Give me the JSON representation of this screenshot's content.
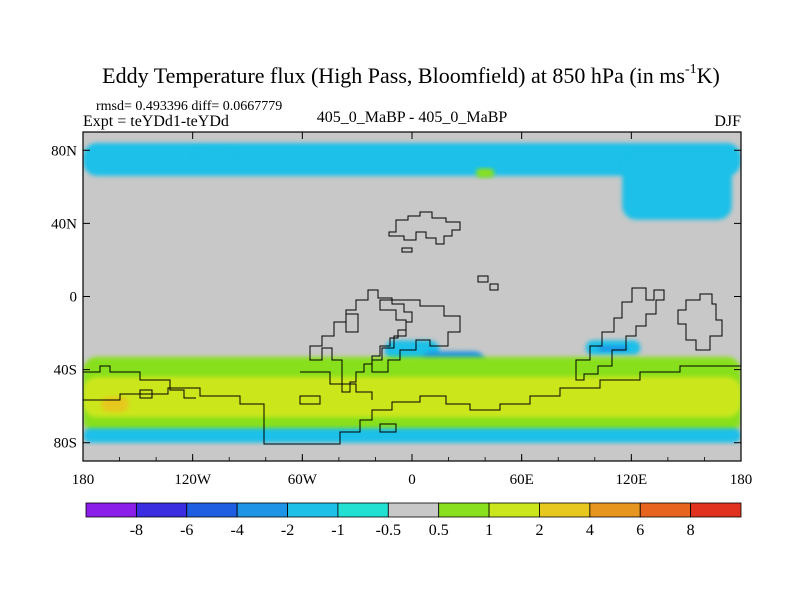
{
  "chart_data": {
    "type": "heatmap",
    "title": "Eddy Temperature flux (High Pass, Bloomfield) at 850 hPa (in ms",
    "title_superscript": "-1",
    "title_suffix": "K)",
    "stats": "rmsd= 0.493396 diff= 0.0667779",
    "experiment": "Expt = teYDd1-teYDd",
    "subtitle_center": "405_0_MaBP - 405_0_MaBP",
    "season": "DJF",
    "x_axis": {
      "range": [
        -180,
        180
      ],
      "ticks": [
        -180,
        -120,
        -60,
        0,
        60,
        120,
        180
      ],
      "tick_labels": [
        "180",
        "120W",
        "60W",
        "0",
        "60E",
        "120E",
        "180"
      ]
    },
    "y_axis": {
      "range": [
        -90,
        90
      ],
      "ticks": [
        80,
        40,
        0,
        -40,
        -80
      ],
      "tick_labels": [
        "80N",
        "40N",
        "0",
        "40S",
        "80S"
      ]
    },
    "levels": [
      -8,
      -6,
      -4,
      -2,
      -1,
      -0.5,
      0.5,
      1,
      2,
      4,
      6,
      8
    ],
    "colorbar_labels": [
      "-8",
      "-6",
      "-4",
      "-2",
      "-1",
      "-0.5",
      "0.5",
      "1",
      "2",
      "4",
      "6",
      "8"
    ],
    "colorbar_colors": [
      "#8b1ee8",
      "#3a2ee0",
      "#1f5ee0",
      "#1e94e6",
      "#1ec0e8",
      "#22e0d2",
      "#c8c8c8",
      "#88e01e",
      "#cce61e",
      "#e6c81e",
      "#e6961e",
      "#e6641e",
      "#e0321e"
    ],
    "regions": [
      {
        "name": "arctic-negative-band",
        "value": -1,
        "lon": [
          -180,
          180
        ],
        "lat": [
          66,
          84
        ]
      },
      {
        "name": "central-pacific-negative-spot",
        "value": -1,
        "lon": [
          -120,
          -95
        ],
        "lat": [
          75,
          82
        ]
      },
      {
        "name": "north-atlantic-negative",
        "value": -1,
        "lon": [
          115,
          175
        ],
        "lat": [
          42,
          78
        ]
      },
      {
        "name": "europe-positive-spot",
        "value": 1,
        "lon": [
          35,
          45
        ],
        "lat": [
          65,
          70
        ]
      },
      {
        "name": "south-atlantic-negative",
        "value": -1,
        "lon": [
          -15,
          15
        ],
        "lat": [
          -35,
          -24
        ]
      },
      {
        "name": "africa-negative-core",
        "value": -2,
        "lon": [
          5,
          40
        ],
        "lat": [
          -42,
          -30
        ]
      },
      {
        "name": "indian-ocean-negative",
        "value": -1,
        "lon": [
          95,
          125
        ],
        "lat": [
          -32,
          -24
        ]
      },
      {
        "name": "indian-ocean-negative-core",
        "value": -2,
        "lon": [
          102,
          118
        ],
        "lat": [
          -30,
          -27
        ]
      },
      {
        "name": "southern-ocean-positive-band",
        "value": 1,
        "lon": [
          -180,
          180
        ],
        "lat": [
          -75,
          -33
        ]
      },
      {
        "name": "southern-ocean-strong-band",
        "value": 2,
        "lon": [
          -180,
          180
        ],
        "lat": [
          -66,
          -44
        ]
      },
      {
        "name": "south-pacific-max",
        "value": 4,
        "lon": [
          -170,
          -155
        ],
        "lat": [
          -63,
          -55
        ]
      },
      {
        "name": "antarctic-negative-band",
        "value": -1,
        "lon": [
          -180,
          180
        ],
        "lat": [
          -80,
          -72
        ]
      }
    ]
  }
}
